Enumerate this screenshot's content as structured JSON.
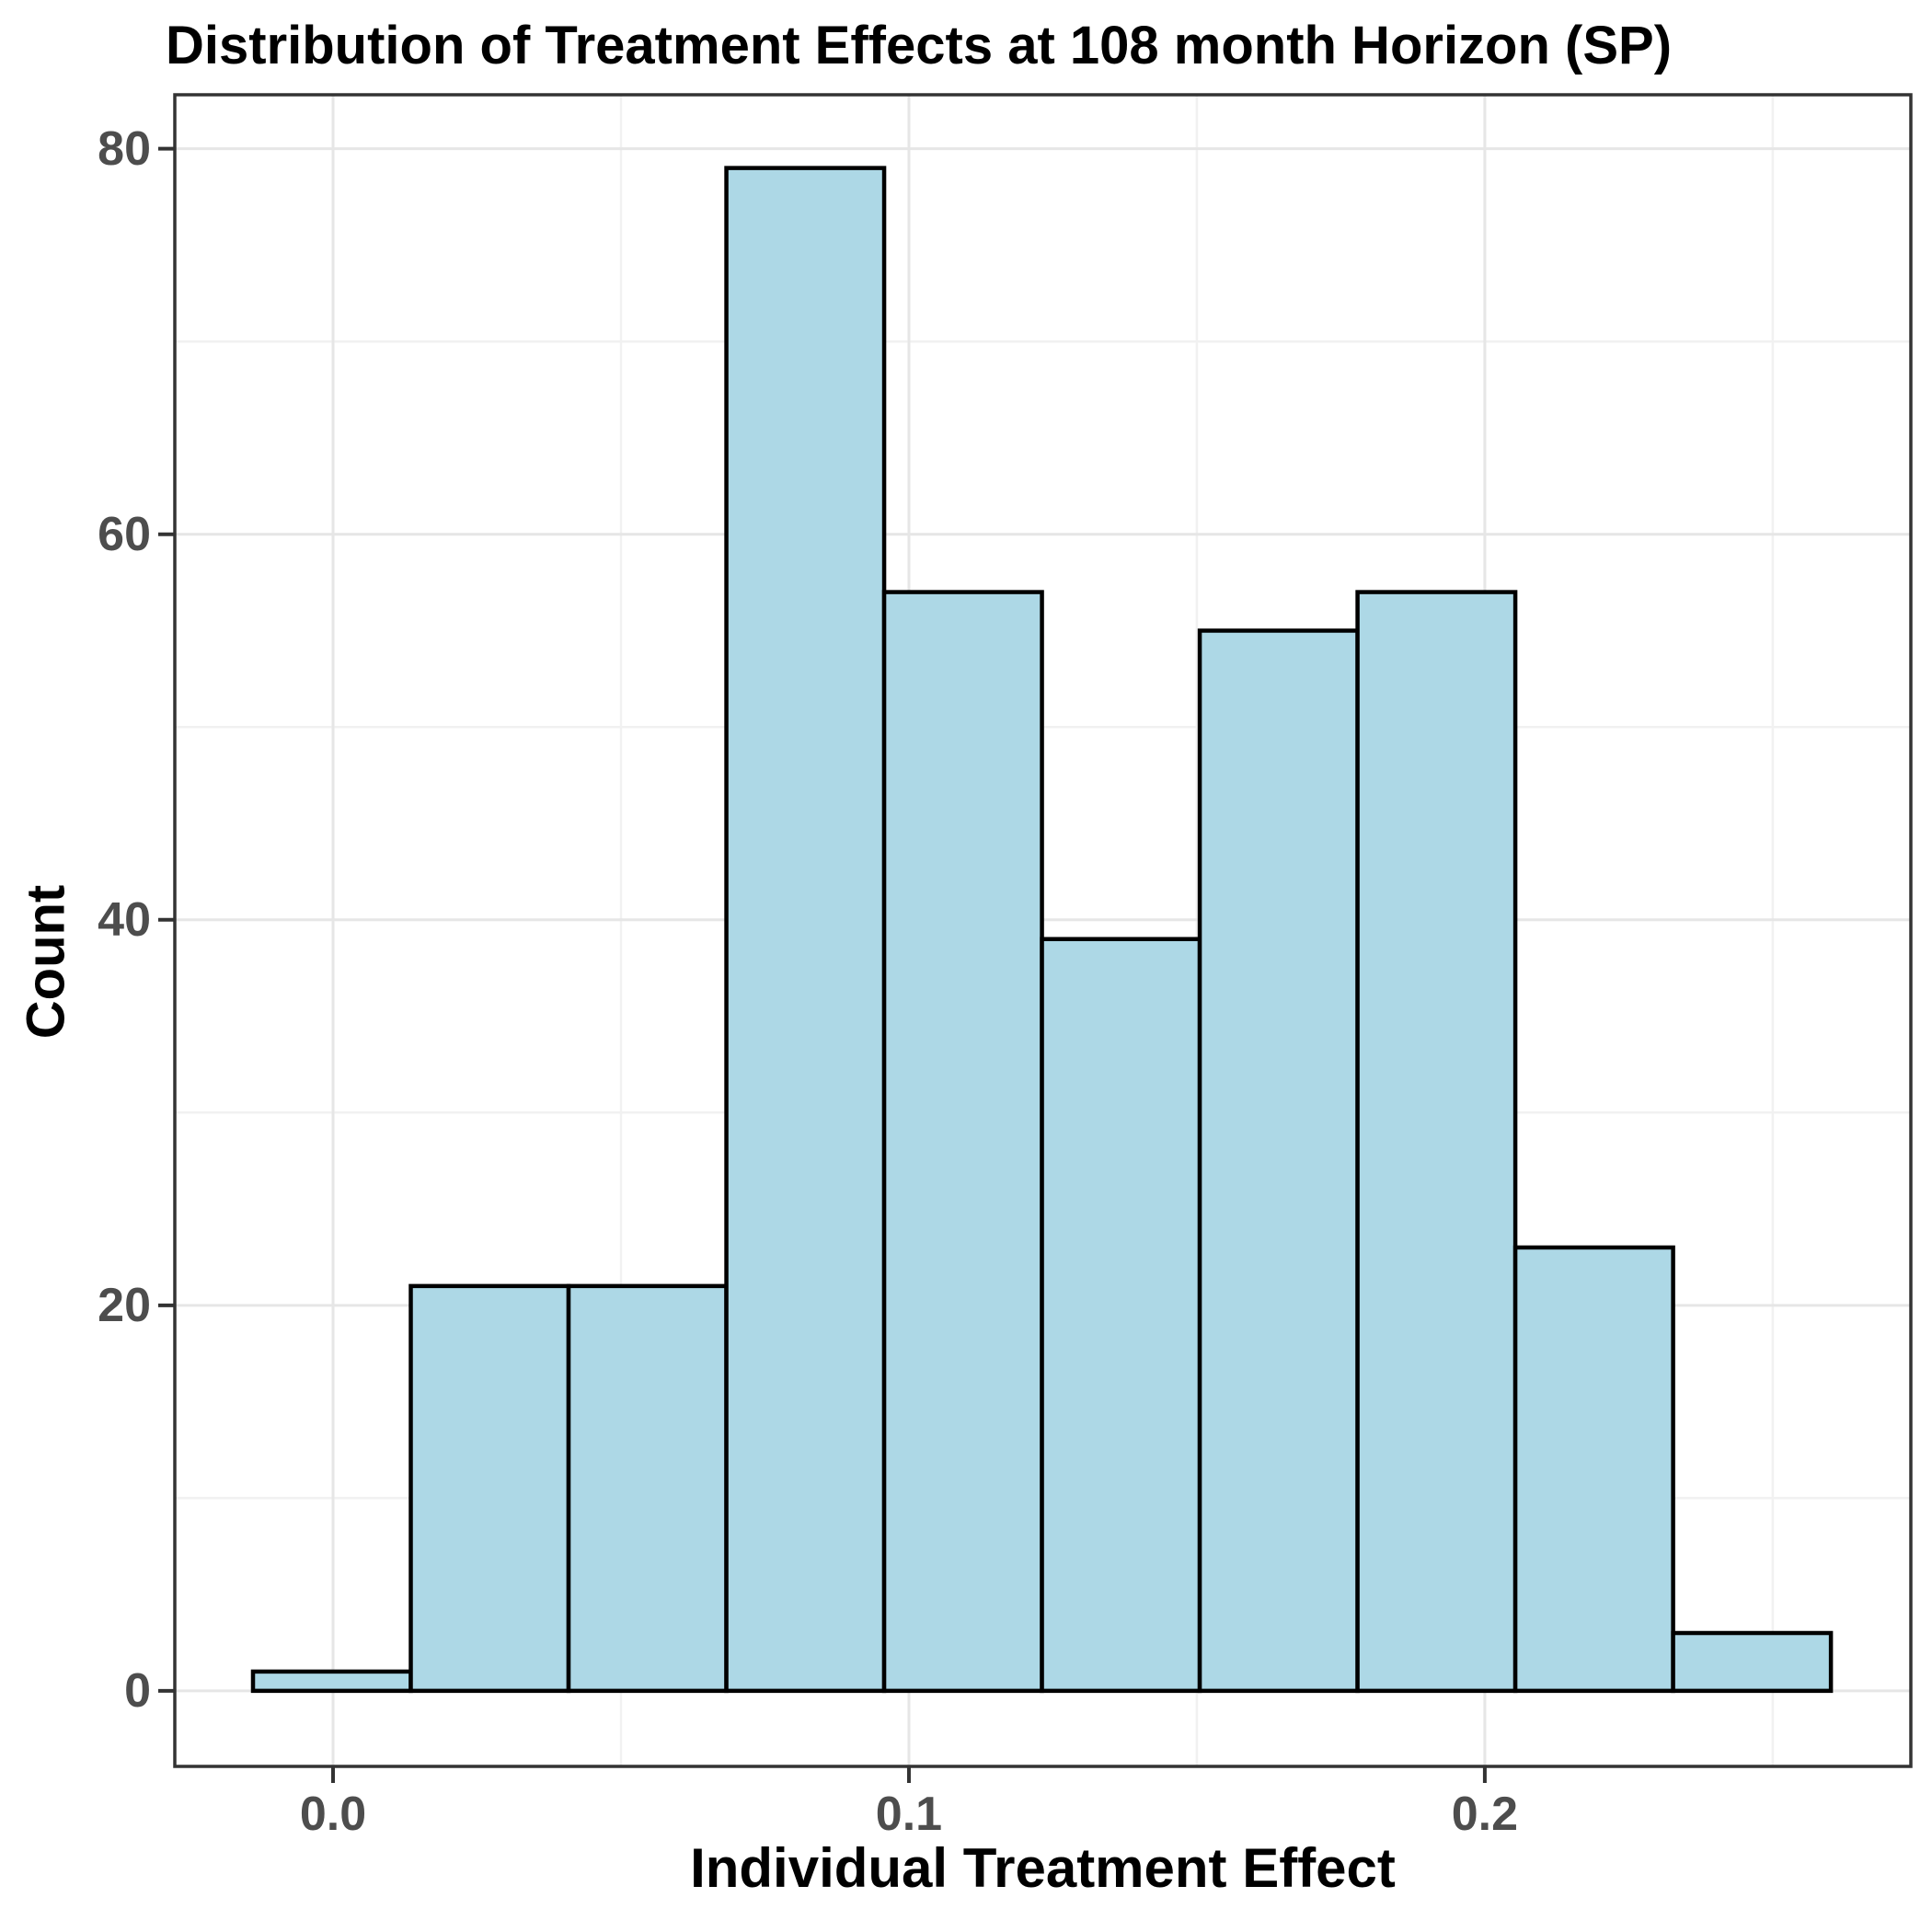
{
  "title": "Distribution of Treatment Effects at 108 month Horizon (SP)",
  "x_axis": {
    "label": "Individual Treatment Effect",
    "tick_labels": [
      "0.0",
      "0.1",
      "0.2"
    ],
    "tick_values": [
      0,
      0.1,
      0.2
    ],
    "minor_tick_values": [
      0.05,
      0.15,
      0.25
    ],
    "range": [
      -0.02748,
      0.27398
    ]
  },
  "y_axis": {
    "label": "Count",
    "tick_labels": [
      "0",
      "20",
      "40",
      "60",
      "80"
    ],
    "tick_values": [
      0,
      20,
      40,
      60,
      80
    ],
    "minor_tick_values": [
      10,
      30,
      50,
      70
    ],
    "range": [
      -3.92,
      82.8
    ]
  },
  "chart_data": {
    "type": "bar",
    "subtype": "histogram",
    "title": "Distribution of Treatment Effects at 108 month Horizon (SP)",
    "xlabel": "Individual Treatment Effect",
    "ylabel": "Count",
    "bin_edges": [
      -0.0139,
      0.0135,
      0.0409,
      0.0683,
      0.0957,
      0.1231,
      0.1505,
      0.1779,
      0.2053,
      0.2327,
      0.2601
    ],
    "counts": [
      1,
      21,
      21,
      79,
      57,
      39,
      55,
      57,
      23,
      3
    ],
    "n_bins": 10,
    "ylim": [
      0,
      80
    ],
    "grid": "major+minor",
    "legend": "none"
  },
  "colors": {
    "bar_fill": "#ADD8E6",
    "bar_stroke": "#000000",
    "grid_major": "#E6E6E6",
    "grid_minor": "#F1F1F1",
    "panel_border": "#333333",
    "tick": "#333333",
    "tick_label": "#4D4D4D",
    "title": "#000000",
    "background": "#FFFFFF"
  }
}
